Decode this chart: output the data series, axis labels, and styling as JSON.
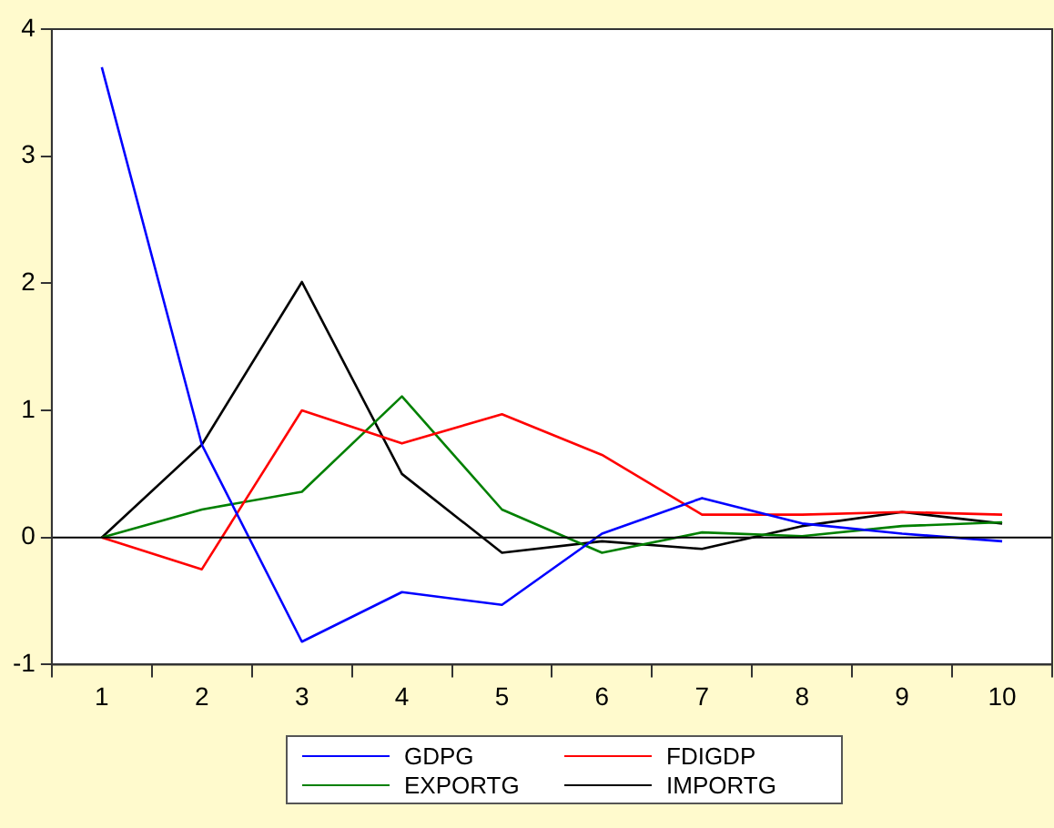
{
  "chart_data": {
    "type": "line",
    "categories": [
      "1",
      "2",
      "3",
      "4",
      "5",
      "6",
      "7",
      "8",
      "9",
      "10"
    ],
    "series": [
      {
        "name": "GDPG",
        "color": "#0000ff",
        "values": [
          3.7,
          0.73,
          -0.82,
          -0.43,
          -0.53,
          0.03,
          0.31,
          0.11,
          0.03,
          -0.03
        ]
      },
      {
        "name": "FDIGDP",
        "color": "#ff0000",
        "values": [
          0,
          -0.25,
          1.0,
          0.74,
          0.97,
          0.65,
          0.18,
          0.18,
          0.2,
          0.18
        ]
      },
      {
        "name": "EXPORTG",
        "color": "#008000",
        "values": [
          0,
          0.22,
          0.36,
          1.11,
          0.22,
          -0.12,
          0.04,
          0.01,
          0.09,
          0.12
        ]
      },
      {
        "name": "IMPORTG",
        "color": "#000000",
        "values": [
          0,
          0.73,
          2.01,
          0.5,
          -0.12,
          -0.03,
          -0.09,
          0.09,
          0.2,
          0.11
        ]
      }
    ],
    "ylim": [
      -1,
      4
    ],
    "yticks": [
      -1,
      0,
      1,
      2,
      3,
      4
    ],
    "ref_lines": [
      {
        "axis": "y",
        "value": 0,
        "color": "#000000"
      }
    ],
    "grid": false,
    "legend": "bottom",
    "marker": "none",
    "line_style": "solid"
  }
}
